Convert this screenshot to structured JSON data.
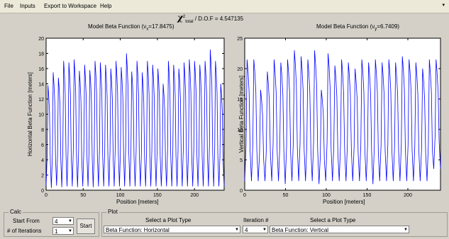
{
  "menu": {
    "items": [
      "File",
      "Inputs",
      "Export to Workspace",
      "Help"
    ]
  },
  "chi": {
    "symbol": "χ",
    "sup": "2",
    "sub": "total",
    "text": " / D.O.F = 4.547135"
  },
  "plots": {
    "left": {
      "title": "Model Beta Function (ν",
      "title_sub": "x",
      "title_end": "=17.8475)",
      "ylabel": "Horizontal Beta Function [meters]",
      "xlabel": "Position [meters]",
      "yticks": [
        "0",
        "2",
        "4",
        "6",
        "8",
        "10",
        "12",
        "14",
        "16",
        "18",
        "20"
      ],
      "xticks": [
        "0",
        "50",
        "100",
        "150",
        "200"
      ]
    },
    "right": {
      "title": "Model Beta Function (ν",
      "title_sub": "y",
      "title_end": "=6.7409)",
      "ylabel": "Vertical Beta Function [meters]",
      "xlabel": "Position [meters]",
      "yticks": [
        "0",
        "5",
        "10",
        "15",
        "20",
        "25"
      ],
      "xticks": [
        "0",
        "50",
        "100",
        "150",
        "200"
      ]
    }
  },
  "chart_data": [
    {
      "type": "line",
      "title": "Model Beta Function (νx=17.8475)",
      "xlabel": "Position [meters]",
      "ylabel": "Horizontal Beta Function [meters]",
      "xlim": [
        0,
        240
      ],
      "ylim": [
        0,
        20
      ],
      "color": "#0000ff",
      "series": [
        {
          "peaks": [
            13.8,
            15.5,
            14.8,
            17.0,
            16.8,
            17.2,
            15.7,
            16.5,
            15.8,
            17.0,
            16.8,
            16.5,
            16.0,
            17.0,
            16.2,
            18.0,
            15.6,
            17.0,
            15.5,
            17.0,
            16.5,
            16.0,
            14.0,
            17.0,
            16.5,
            16.0,
            16.8,
            17.2,
            17.0,
            16.5,
            17.0,
            18.5,
            17.0,
            14.0
          ],
          "troughs": [
            0.6,
            0.3,
            0.6,
            0.4,
            0.5,
            0.5,
            0.4,
            0.5,
            0.5,
            0.4,
            0.5,
            0.5,
            0.5,
            0.5,
            0.5,
            0.5,
            0.5,
            0.5,
            0.5,
            0.5,
            0.5,
            0.5,
            0.5,
            0.5,
            0.5,
            0.5,
            0.5,
            0.5,
            0.5,
            0.5,
            0.5,
            0.5,
            0.5,
            0.5
          ]
        }
      ]
    },
    {
      "type": "line",
      "title": "Model Beta Function (νy=6.7409)",
      "xlabel": "Position [meters]",
      "ylabel": "Vertical Beta Function [meters]",
      "xlim": [
        0,
        240
      ],
      "ylim": [
        0,
        25
      ],
      "color": "#0000ff",
      "series": [
        {
          "peaks": [
            21.5,
            21.5,
            16.5,
            19.5,
            21.5,
            21.0,
            21.5,
            23.0,
            22.0,
            21.5,
            23.0,
            16.5,
            22.5,
            20.5,
            21.5,
            21.0,
            20.0,
            21.5,
            21.0,
            21.5,
            21.0,
            21.5,
            21.0,
            22.0,
            21.5,
            21.0,
            20.0,
            21.5,
            21.5
          ],
          "troughs": [
            1.5,
            1.5,
            1.5,
            1.5,
            1.5,
            1.5,
            1.0,
            1.5,
            1.5,
            1.5,
            1.5,
            1.0,
            1.5,
            1.5,
            1.5,
            1.5,
            1.5,
            1.5,
            1.5,
            1.0,
            1.5,
            1.5,
            1.5,
            1.5,
            1.5,
            1.5,
            1.5,
            1.5,
            3.5
          ]
        }
      ]
    }
  ],
  "calc": {
    "title": "Calc",
    "start_from_label": "Start From",
    "start_from_value": "4",
    "iterations_label": "# of Iterations",
    "iterations_value": "1",
    "start_button": "Start"
  },
  "plotpanel": {
    "title": "Plot",
    "select_type_label": "Select a Plot Type",
    "left_select": "Beta Function:  Horizontal",
    "iteration_label": "Iteration #",
    "iteration_value": "4",
    "select_type_label2": "Select a Plot Type",
    "right_select": "Beta Function:  Vertical"
  }
}
